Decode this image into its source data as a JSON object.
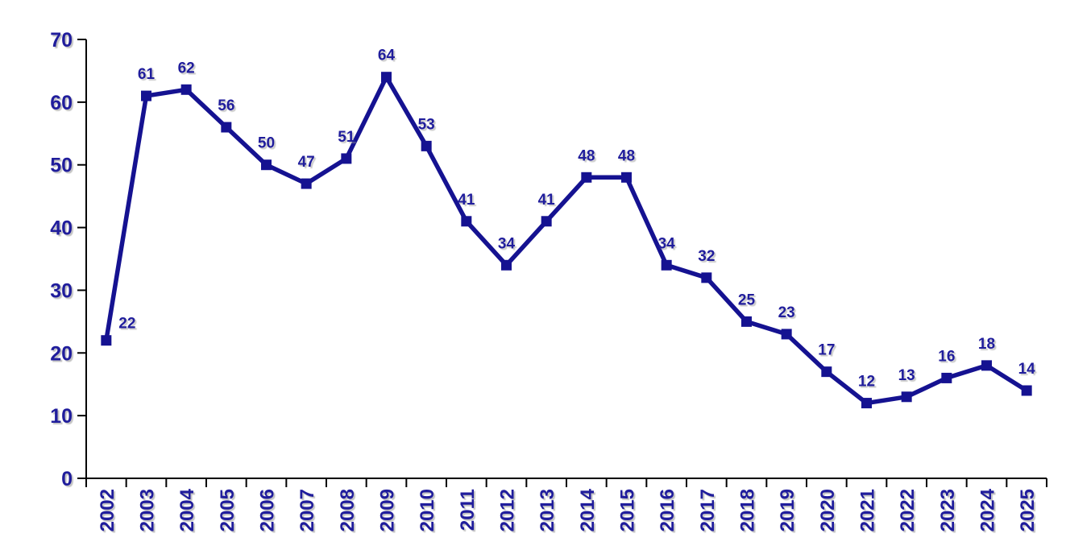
{
  "chart_data": {
    "type": "line",
    "title": "",
    "categories": [
      "2002",
      "2003",
      "2004",
      "2005",
      "2006",
      "2007",
      "2008",
      "2009",
      "2010",
      "2011",
      "2012",
      "2013",
      "2014",
      "2015",
      "2016",
      "2017",
      "2018",
      "2019",
      "2020",
      "2021",
      "2022",
      "2023",
      "2024",
      "2025"
    ],
    "values": [
      22,
      61,
      62,
      56,
      50,
      47,
      51,
      64,
      53,
      41,
      34,
      41,
      48,
      48,
      34,
      32,
      25,
      23,
      17,
      12,
      13,
      16,
      18,
      14
    ],
    "ylim": [
      0,
      70
    ],
    "yticks": [
      0,
      10,
      20,
      30,
      40,
      50,
      60,
      70
    ],
    "xlabel": "",
    "ylabel": "",
    "grid": false,
    "legend": "none",
    "data_labels": true,
    "marker_shape": "square",
    "x_label_rotation": -90,
    "colors": {
      "series": "#151291",
      "text": "#201D9C",
      "axis": "#000000",
      "background": "#FFFFFF",
      "text_shadow": "#B4B4B4"
    }
  }
}
